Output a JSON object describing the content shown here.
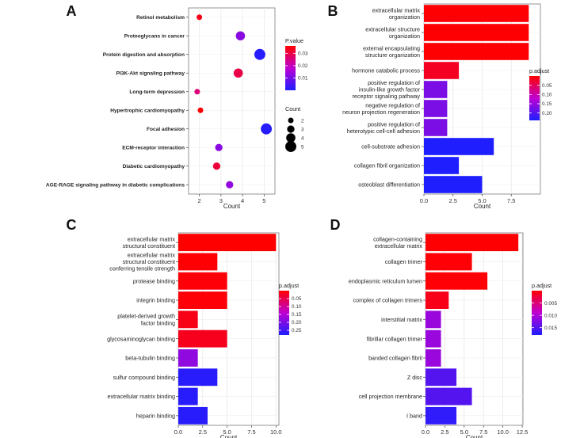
{
  "chart_data": [
    {
      "id": "A",
      "panel_label": "A",
      "type": "scatter",
      "xlabel": "Count",
      "xlim": [
        1.5,
        5.5
      ],
      "xticks": [
        2,
        3,
        4,
        5
      ],
      "categories": [
        "Retinol metabolism",
        "Proteoglycans in cancer",
        "Protein digestion and absorption",
        "PI3K-Akt signaling pathway",
        "Long-term depression",
        "Hypertrophic cardiomyopathy",
        "Focal adhesion",
        "ECM-receptor interaction",
        "Diabetic cardiomyopathy",
        "AGE-RAGE signaling pathway in diabetic complications"
      ],
      "x": [
        2.0,
        3.9,
        4.8,
        3.8,
        1.9,
        2.05,
        5.1,
        2.9,
        2.8,
        3.4
      ],
      "size": [
        2,
        4,
        5,
        4,
        2,
        2,
        5,
        3,
        3,
        3
      ],
      "color": [
        0.034,
        0.012,
        0.001,
        0.03,
        0.026,
        0.038,
        0.001,
        0.012,
        0.031,
        0.013
      ],
      "color_legend": {
        "title": "P.value",
        "min": 0.0,
        "max": 0.036,
        "ticks": [
          0.03,
          0.02,
          0.01
        ],
        "direction": "high-red"
      },
      "size_legend": {
        "title": "Count",
        "values": [
          2,
          3,
          4,
          5
        ]
      }
    },
    {
      "id": "B",
      "panel_label": "B",
      "type": "bar",
      "xlabel": "Count",
      "xlim": [
        0,
        10
      ],
      "xticks": [
        "0.0",
        "2.5",
        "5.0",
        "7.5"
      ],
      "categories": [
        "extracellular matrix organization",
        "extracellular structure organization",
        "external encapsulating structure organization",
        "hormone catabolic process",
        "positive regulation of insulin-like growth factor receptor signaling pathway",
        "negative regulation of neuron projection regeneration",
        "positive regulation of heterotypic cell-cell adhesion",
        "cell-substrate adhesion",
        "collagen fibril organization",
        "osteoblast differentiation"
      ],
      "label_lines": [
        [
          "extracellular matrix",
          "organization"
        ],
        [
          "extracellular structure",
          "organization"
        ],
        [
          "external encapsulating",
          "structure organization"
        ],
        [
          "hormone catabolic process"
        ],
        [
          "positive regulation of",
          "insulin-like growth factor",
          "receptor signaling pathway"
        ],
        [
          "negative regulation of",
          "neuron projection regeneration"
        ],
        [
          "positive regulation of",
          "heterotypic cell-cell adhesion"
        ],
        [
          "cell-substrate adhesion"
        ],
        [
          "collagen fibril organization"
        ],
        [
          "osteoblast differentiation"
        ]
      ],
      "values": [
        9,
        9,
        9,
        3,
        2,
        2,
        2,
        6,
        3,
        5
      ],
      "color": [
        0.001,
        0.001,
        0.001,
        0.02,
        0.17,
        0.17,
        0.17,
        0.24,
        0.24,
        0.24
      ],
      "color_legend": {
        "title": "p.adjust",
        "min": 0.0,
        "max": 0.24,
        "ticks": [
          0.05,
          0.1,
          0.15,
          0.2
        ],
        "tick_labels": [
          "0.05",
          "0.10",
          "0.15",
          "0.20"
        ],
        "direction": "low-red"
      }
    },
    {
      "id": "C",
      "panel_label": "C",
      "type": "bar",
      "xlabel": "Count",
      "xlim": [
        0,
        10.3
      ],
      "xticks": [
        "0.0",
        "2.5",
        "5.0",
        "7.5",
        "10.0"
      ],
      "categories": [
        "extracellular matrix structural constituent",
        "extracellular matrix structural constituent conferring tensile strength",
        "protease binding",
        "integrin binding",
        "platelet-derived growth factor binding",
        "glycosaminoglycan binding",
        "beta-tubulin binding",
        "sulfur compound binding",
        "extracellular matrix binding",
        "heparin binding"
      ],
      "label_lines": [
        [
          "extracellular matrix",
          "structural constituent"
        ],
        [
          "extracellular matrix",
          "structural constituent",
          "conferring tensile strength"
        ],
        [
          "protease binding"
        ],
        [
          "integrin binding"
        ],
        [
          "platelet-derived growth",
          "factor binding"
        ],
        [
          "glycosaminoglycan binding"
        ],
        [
          "beta-tubulin binding"
        ],
        [
          "sulfur compound binding"
        ],
        [
          "extracellular matrix binding"
        ],
        [
          "heparin binding"
        ]
      ],
      "values": [
        10,
        4,
        5,
        5,
        2,
        5,
        2,
        4,
        2,
        3
      ],
      "color": [
        0.0001,
        0.003,
        0.005,
        0.005,
        0.015,
        0.02,
        0.18,
        0.27,
        0.27,
        0.27
      ],
      "color_legend": {
        "title": "p.adjust",
        "min": 0.0,
        "max": 0.28,
        "ticks": [
          0.05,
          0.1,
          0.15,
          0.2,
          0.25
        ],
        "tick_labels": [
          "0.05",
          "0.10",
          "0.15",
          "0.20",
          "0.25"
        ],
        "direction": "low-red"
      }
    },
    {
      "id": "D",
      "panel_label": "D",
      "type": "bar",
      "xlabel": "Count",
      "xlim": [
        0,
        12.6
      ],
      "xticks": [
        "0.0",
        "2.5",
        "5.0",
        "7.5",
        "10.0",
        "12.5"
      ],
      "categories": [
        "collagen-containing extracellular matrix",
        "collagen trimer",
        "endoplasmic reticulum lumen",
        "complex of collagen trimers",
        "interstitial matrix",
        "fibrillar collagen trimer",
        "banded collagen fibril",
        "Z disc",
        "cell projection membrane",
        "I band"
      ],
      "label_lines": [
        [
          "collagen-containing",
          "extracellular matrix"
        ],
        [
          "collagen trimer"
        ],
        [
          "endoplasmic reticulum lumen"
        ],
        [
          "complex of collagen trimers"
        ],
        [
          "interstitial matrix"
        ],
        [
          "fibrillar collagen trimer"
        ],
        [
          "banded collagen fibril"
        ],
        [
          "Z disc"
        ],
        [
          "cell projection membrane"
        ],
        [
          "I band"
        ]
      ],
      "values": [
        12,
        6,
        8,
        3,
        2,
        2,
        2,
        4,
        6,
        4
      ],
      "color": [
        0.0001,
        0.0002,
        0.0002,
        0.001,
        0.011,
        0.011,
        0.011,
        0.015,
        0.015,
        0.017
      ],
      "color_legend": {
        "title": "p.adjust",
        "min": 0.0,
        "max": 0.018,
        "ticks": [
          0.005,
          0.01,
          0.015
        ],
        "tick_labels": [
          "0.005",
          "0.010",
          "0.015"
        ],
        "direction": "low-red"
      }
    }
  ]
}
